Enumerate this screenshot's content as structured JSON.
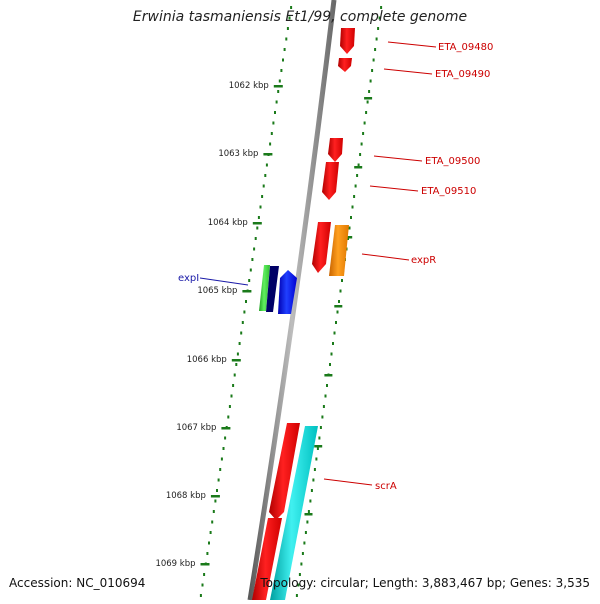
{
  "title": {
    "species": "Erwinia tasmaniensis",
    "strain": " Et1/99, complete genome"
  },
  "footer": {
    "accession": "Accession: NC_010694",
    "stats": "Topology: circular; Length: 3,883,467 bp; Genes: 3,535"
  },
  "scale_ticks": [
    "1062 kbp",
    "1063 kbp",
    "1064 kbp",
    "1065 kbp",
    "1066 kbp",
    "1067 kbp",
    "1068 kbp",
    "1069 kbp"
  ],
  "genes": [
    {
      "name": "ETA_09480",
      "color": "#ff0000"
    },
    {
      "name": "ETA_09490",
      "color": "#ff0000"
    },
    {
      "name": "ETA_09500",
      "color": "#ff0000"
    },
    {
      "name": "ETA_09510",
      "color": "#ff0000"
    },
    {
      "name": "expR",
      "color": "#ff8c00"
    },
    {
      "name": "expI",
      "color": "#0000ff"
    },
    {
      "name": "scrA",
      "color": "#ff0000"
    }
  ],
  "colors": {
    "axis": "#8a8a8a",
    "ticks": "#1a7a1a",
    "label_red": "#cc0000",
    "label_blue": "#1a1aa8",
    "green_gene": "#33cc33",
    "navy_gene": "#000066",
    "cyan_gene": "#00cccc"
  }
}
